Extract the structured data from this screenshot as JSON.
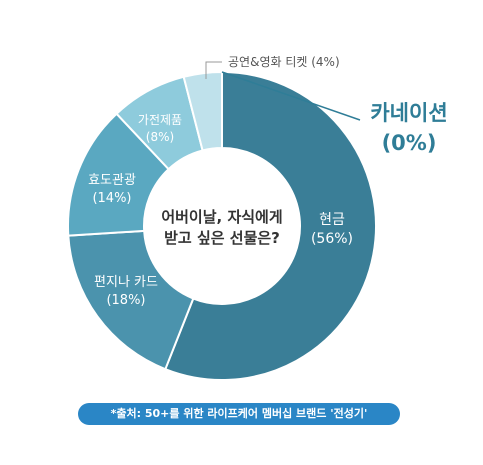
{
  "chart_data": {
    "type": "donut",
    "title": "어버이날, 자식에게 받고 싶은 선물은?",
    "center_lines": [
      "어버이날, 자식에게",
      "받고 싶은 선물은?"
    ],
    "slices": [
      {
        "name": "현금",
        "value": 56,
        "label": "(56%)",
        "color": "#3a7e97"
      },
      {
        "name": "편지나 카드",
        "value": 18,
        "label": "(18%)",
        "color": "#4b93ad"
      },
      {
        "name": "효도관광",
        "value": 14,
        "label": "(14%)",
        "color": "#5aa8c1"
      },
      {
        "name": "가전제품",
        "value": 8,
        "label": "(8%)",
        "color": "#8ecbdc"
      },
      {
        "name": "공연&영화 티켓",
        "value": 4,
        "label": "(4%)",
        "color": "#bfe1eb"
      },
      {
        "name": "카네이션",
        "value": 0,
        "label": "(0%)",
        "color": "#2f7d97"
      }
    ],
    "external_labels": {
      "ticket": "공연&영화 티켓 (4%)",
      "carnation_name": "카네이션",
      "carnation_value": "(0%)"
    }
  },
  "source": "*출처: 50+를 위한 라이프케어 멤버십 브랜드 '전성기'"
}
